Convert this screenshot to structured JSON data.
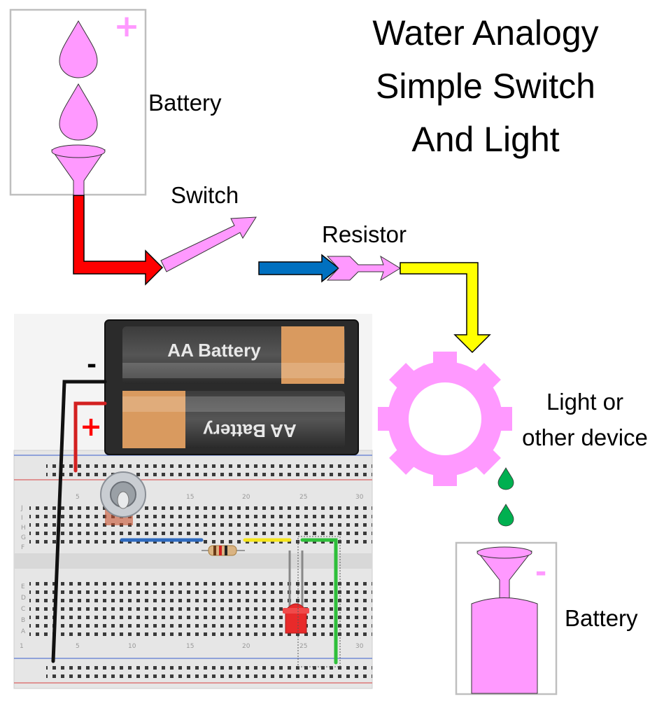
{
  "title": {
    "line1": "Water Analogy",
    "line2": "Simple Switch",
    "line3": "And Light"
  },
  "labels": {
    "battery_top": "Battery",
    "switch": "Switch",
    "resistor": "Resistor",
    "device_line1": "Light or",
    "device_line2": "other device",
    "battery_bottom": "Battery"
  },
  "signs": {
    "plus": "+",
    "minus": "-"
  },
  "battery_holder": {
    "cell_top": "AA Battery",
    "cell_bottom": "AA Battery"
  },
  "breadboard": {
    "top_row_letters": [
      "J",
      "I",
      "H",
      "G",
      "F"
    ],
    "bottom_row_letters": [
      "E",
      "D",
      "C",
      "B",
      "A"
    ],
    "column_numbers": [
      "1",
      "5",
      "10",
      "15",
      "20",
      "25",
      "30"
    ]
  },
  "colors": {
    "water": "#FF99FF",
    "water_stroke": "#000000",
    "wire_red": "#FF0000",
    "wire_blue": "#0070C0",
    "wire_yellow": "#FFFF00",
    "drop_green": "#00B050",
    "box_border": "#BFBFBF"
  }
}
